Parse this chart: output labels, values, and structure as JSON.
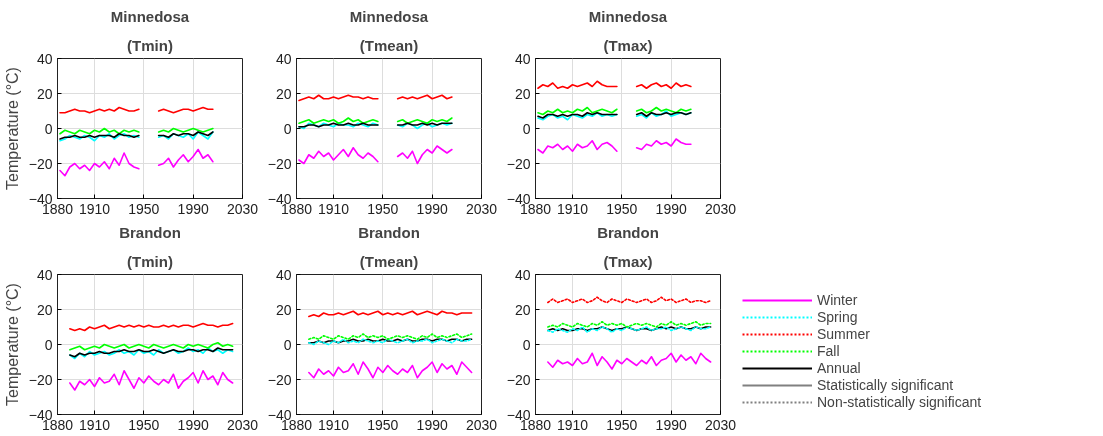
{
  "chart_data": [
    {
      "type": "line",
      "title": "Minnedosa",
      "subtitle": "(Tmin)",
      "ylabel": "Temperature (°C)",
      "xlim": [
        1880,
        2030
      ],
      "xticks": [
        1880,
        1910,
        1950,
        1990,
        2030
      ],
      "ylim": [
        -40,
        40
      ],
      "yticks": [
        -40,
        -20,
        0,
        20,
        40
      ],
      "grid": true,
      "x": [
        1882,
        1886,
        1890,
        1894,
        1898,
        1902,
        1906,
        1910,
        1914,
        1918,
        1922,
        1926,
        1930,
        1934,
        1938,
        1942,
        1946,
        1954,
        1962,
        1966,
        1970,
        1974,
        1978,
        1982,
        1986,
        1990,
        1994,
        1998,
        2002,
        2006
      ],
      "series": [
        {
          "color": "#ff00ff",
          "line_style": "solid",
          "values": [
            -24,
            -27,
            -22,
            -20,
            -23,
            -21,
            -24,
            -20,
            -22,
            -19,
            -23,
            -17,
            -21,
            -14,
            -20,
            -22,
            -23,
            null,
            -21,
            -20,
            -17,
            -22,
            -18,
            -15,
            -19,
            -16,
            -12,
            -17,
            -15,
            -19
          ]
        },
        {
          "color": "#00ffff",
          "line_style": "solid",
          "values": [
            -7,
            -6,
            -4,
            -5,
            -6,
            -4,
            -5,
            -7,
            -4,
            -5,
            -3,
            -6,
            -4,
            -3,
            -5,
            -4,
            -5,
            null,
            -5,
            -4,
            -6,
            -3,
            -4,
            -5,
            -3,
            -6,
            -2,
            -4,
            -6,
            -2
          ]
        },
        {
          "color": "#ff0000",
          "line_style": "solid",
          "values": [
            9,
            9,
            10,
            11,
            10,
            10,
            9,
            10,
            11,
            10,
            11,
            10,
            12,
            11,
            10,
            10,
            11,
            null,
            10,
            11,
            10,
            9,
            10,
            11,
            11,
            10,
            11,
            12,
            11,
            11
          ]
        },
        {
          "color": "#00ff00",
          "line_style": "solid",
          "values": [
            -3,
            -1,
            -2,
            -3,
            -1,
            -2,
            -3,
            -1,
            -2,
            0,
            -2,
            -1,
            -3,
            -1,
            -2,
            -1,
            -2,
            null,
            -2,
            -1,
            -2,
            0,
            -1,
            -2,
            -1,
            0,
            -1,
            -2,
            -1,
            0
          ]
        },
        {
          "color": "#000000",
          "line_style": "solid",
          "values": [
            -6,
            -5,
            -5,
            -4,
            -5,
            -5,
            -4,
            -5,
            -4,
            -4,
            -4,
            -5,
            -3,
            -4,
            -4,
            -5,
            -4,
            null,
            -4,
            -4,
            -5,
            -3,
            -4,
            -3,
            -3,
            -4,
            -2,
            -3,
            -4,
            -2
          ]
        }
      ]
    },
    {
      "type": "line",
      "title": "Minnedosa",
      "subtitle": "(Tmean)",
      "xlim": [
        1880,
        2030
      ],
      "xticks": [
        1880,
        1910,
        1950,
        1990,
        2030
      ],
      "ylim": [
        -40,
        40
      ],
      "yticks": [
        -40,
        -20,
        0,
        20,
        40
      ],
      "grid": true,
      "x": [
        1882,
        1886,
        1890,
        1894,
        1898,
        1902,
        1906,
        1910,
        1914,
        1918,
        1922,
        1926,
        1930,
        1934,
        1938,
        1942,
        1946,
        1954,
        1962,
        1966,
        1970,
        1974,
        1978,
        1982,
        1986,
        1990,
        1994,
        1998,
        2002,
        2006
      ],
      "series": [
        {
          "color": "#ff00ff",
          "line_style": "solid",
          "values": [
            -18,
            -20,
            -15,
            -17,
            -13,
            -16,
            -14,
            -18,
            -15,
            -12,
            -16,
            -11,
            -15,
            -17,
            -14,
            -16,
            -19,
            null,
            -16,
            -14,
            -17,
            -13,
            -20,
            -15,
            -12,
            -14,
            -10,
            -12,
            -14,
            -12
          ]
        },
        {
          "color": "#00ffff",
          "line_style": "solid",
          "values": [
            1,
            0,
            3,
            2,
            1,
            3,
            2,
            1,
            3,
            2,
            2,
            1,
            3,
            2,
            1,
            3,
            2,
            null,
            2,
            1,
            3,
            2,
            0,
            2,
            3,
            1,
            2,
            3,
            2,
            3
          ]
        },
        {
          "color": "#ff0000",
          "line_style": "solid",
          "values": [
            16,
            17,
            18,
            17,
            19,
            17,
            17,
            18,
            17,
            18,
            19,
            18,
            18,
            17,
            18,
            17,
            17,
            null,
            17,
            18,
            17,
            18,
            17,
            18,
            19,
            17,
            18,
            19,
            17,
            18
          ]
        },
        {
          "color": "#00ff00",
          "line_style": "solid",
          "values": [
            3,
            4,
            5,
            3,
            4,
            5,
            4,
            5,
            3,
            4,
            6,
            4,
            5,
            3,
            4,
            5,
            4,
            null,
            4,
            5,
            3,
            4,
            5,
            4,
            3,
            5,
            4,
            5,
            4,
            6
          ]
        },
        {
          "color": "#000000",
          "line_style": "solid",
          "values": [
            1,
            1,
            2,
            2,
            1,
            2,
            2,
            3,
            2,
            2,
            3,
            2,
            2,
            3,
            2,
            2,
            2,
            null,
            2,
            2,
            3,
            2,
            2,
            3,
            2,
            3,
            2,
            3,
            3,
            3
          ]
        }
      ]
    },
    {
      "type": "line",
      "title": "Minnedosa",
      "subtitle": "(Tmax)",
      "xlim": [
        1880,
        2030
      ],
      "xticks": [
        1880,
        1910,
        1950,
        1990,
        2030
      ],
      "ylim": [
        -40,
        40
      ],
      "yticks": [
        -40,
        -20,
        0,
        20,
        40
      ],
      "grid": true,
      "x": [
        1882,
        1886,
        1890,
        1894,
        1898,
        1902,
        1906,
        1910,
        1914,
        1918,
        1922,
        1926,
        1930,
        1934,
        1938,
        1942,
        1946,
        1954,
        1962,
        1966,
        1970,
        1974,
        1978,
        1982,
        1986,
        1990,
        1994,
        1998,
        2002,
        2006
      ],
      "series": [
        {
          "color": "#ff00ff",
          "line_style": "solid",
          "values": [
            -12,
            -14,
            -10,
            -11,
            -9,
            -12,
            -10,
            -13,
            -9,
            -11,
            -10,
            -7,
            -12,
            -9,
            -8,
            -10,
            -13,
            null,
            -11,
            -12,
            -9,
            -10,
            -7,
            -9,
            -8,
            -10,
            -6,
            -8,
            -9,
            -9
          ]
        },
        {
          "color": "#00ffff",
          "line_style": "solid",
          "values": [
            6,
            5,
            7,
            8,
            6,
            7,
            5,
            8,
            7,
            6,
            8,
            7,
            9,
            7,
            8,
            7,
            8,
            null,
            7,
            8,
            6,
            9,
            7,
            8,
            10,
            7,
            8,
            9,
            8,
            9
          ]
        },
        {
          "color": "#ff0000",
          "line_style": "solid",
          "values": [
            23,
            25,
            24,
            26,
            23,
            24,
            23,
            25,
            24,
            25,
            26,
            24,
            27,
            25,
            24,
            24,
            24,
            null,
            24,
            25,
            23,
            25,
            26,
            24,
            25,
            23,
            26,
            24,
            25,
            24
          ]
        },
        {
          "color": "#00ff00",
          "line_style": "solid",
          "values": [
            9,
            8,
            10,
            9,
            11,
            9,
            10,
            9,
            11,
            10,
            12,
            9,
            10,
            11,
            10,
            9,
            11,
            null,
            10,
            11,
            9,
            10,
            12,
            10,
            11,
            10,
            9,
            11,
            10,
            11
          ]
        },
        {
          "color": "#000000",
          "line_style": "solid",
          "values": [
            7,
            6,
            8,
            8,
            7,
            8,
            7,
            8,
            8,
            7,
            9,
            8,
            9,
            8,
            8,
            8,
            8,
            null,
            8,
            9,
            7,
            9,
            8,
            8,
            9,
            8,
            9,
            9,
            8,
            9
          ]
        }
      ]
    },
    {
      "type": "line",
      "title": "Brandon",
      "subtitle": "(Tmin)",
      "ylabel": "Temperature (°C)",
      "xlim": [
        1880,
        2030
      ],
      "xticks": [
        1880,
        1910,
        1950,
        1990,
        2030
      ],
      "ylim": [
        -40,
        40
      ],
      "yticks": [
        -40,
        -20,
        0,
        20,
        40
      ],
      "grid": true,
      "x": [
        1890,
        1894,
        1898,
        1902,
        1906,
        1910,
        1914,
        1918,
        1922,
        1926,
        1930,
        1934,
        1938,
        1942,
        1946,
        1950,
        1954,
        1958,
        1962,
        1966,
        1970,
        1974,
        1978,
        1982,
        1986,
        1990,
        1994,
        1998,
        2002,
        2006,
        2010,
        2014,
        2018,
        2022
      ],
      "series": [
        {
          "color": "#ff00ff",
          "line_style": "solid",
          "values": [
            -22,
            -26,
            -21,
            -23,
            -20,
            -24,
            -19,
            -22,
            -21,
            -17,
            -23,
            -15,
            -20,
            -25,
            -19,
            -22,
            -18,
            -21,
            -23,
            -20,
            -22,
            -17,
            -25,
            -21,
            -19,
            -16,
            -22,
            -15,
            -20,
            -18,
            -23,
            -16,
            -20,
            -22
          ]
        },
        {
          "color": "#00ffff",
          "line_style": "solid",
          "values": [
            -6,
            -8,
            -5,
            -7,
            -4,
            -6,
            -5,
            -4,
            -6,
            -5,
            -3,
            -5,
            -4,
            -6,
            -3,
            -5,
            -4,
            -6,
            -3,
            -5,
            -4,
            -3,
            -5,
            -4,
            -2,
            -4,
            -3,
            -5,
            -2,
            -4,
            -3,
            -5,
            -3,
            -4
          ]
        },
        {
          "color": "#ff0000",
          "line_style": "solid",
          "values": [
            9,
            8,
            9,
            8,
            10,
            9,
            10,
            11,
            9,
            10,
            11,
            10,
            11,
            10,
            11,
            10,
            11,
            10,
            10,
            11,
            10,
            11,
            10,
            11,
            11,
            10,
            11,
            12,
            11,
            11,
            10,
            11,
            11,
            12
          ]
        },
        {
          "color": "#00ff00",
          "line_style": "solid",
          "values": [
            -3,
            -2,
            -1,
            -3,
            -2,
            -1,
            -2,
            0,
            -1,
            -2,
            -1,
            0,
            -2,
            -1,
            0,
            -1,
            -2,
            0,
            -1,
            -2,
            -1,
            0,
            -1,
            -2,
            0,
            -1,
            0,
            -1,
            -2,
            0,
            1,
            -1,
            0,
            -1
          ]
        },
        {
          "color": "#000000",
          "line_style": "solid",
          "values": [
            -6,
            -7,
            -5,
            -6,
            -5,
            -5,
            -4,
            -5,
            -5,
            -4,
            -4,
            -3,
            -4,
            -4,
            -3,
            -4,
            -4,
            -3,
            -4,
            -5,
            -4,
            -3,
            -4,
            -4,
            -3,
            -3,
            -4,
            -3,
            -3,
            -4,
            -2,
            -3,
            -3,
            -3
          ]
        }
      ]
    },
    {
      "type": "line",
      "title": "Brandon",
      "subtitle": "(Tmean)",
      "xlim": [
        1880,
        2030
      ],
      "xticks": [
        1880,
        1910,
        1950,
        1990,
        2030
      ],
      "ylim": [
        -40,
        40
      ],
      "yticks": [
        -40,
        -20,
        0,
        20,
        40
      ],
      "grid": true,
      "x": [
        1890,
        1894,
        1898,
        1902,
        1906,
        1910,
        1914,
        1918,
        1922,
        1926,
        1930,
        1934,
        1938,
        1942,
        1946,
        1950,
        1954,
        1958,
        1962,
        1966,
        1970,
        1974,
        1978,
        1982,
        1986,
        1990,
        1994,
        1998,
        2002,
        2006,
        2010,
        2014,
        2018,
        2022
      ],
      "series": [
        {
          "color": "#ff00ff",
          "line_style": "solid",
          "values": [
            -16,
            -19,
            -14,
            -17,
            -15,
            -18,
            -13,
            -16,
            -15,
            -11,
            -17,
            -10,
            -14,
            -19,
            -13,
            -16,
            -12,
            -15,
            -17,
            -14,
            -16,
            -12,
            -19,
            -15,
            -13,
            -10,
            -16,
            -11,
            -14,
            -12,
            -17,
            -10,
            -13,
            -16
          ]
        },
        {
          "color": "#00ffff",
          "line_style": "dotted",
          "values": [
            1,
            0,
            2,
            1,
            0,
            2,
            1,
            3,
            1,
            2,
            1,
            3,
            2,
            1,
            2,
            1,
            3,
            2,
            1,
            2,
            3,
            1,
            2,
            2,
            3,
            1,
            2,
            3,
            2,
            1,
            3,
            2,
            2,
            3
          ]
        },
        {
          "color": "#ff0000",
          "line_style": "solid",
          "values": [
            16,
            17,
            16,
            18,
            17,
            17,
            18,
            17,
            18,
            19,
            17,
            18,
            17,
            18,
            19,
            17,
            18,
            17,
            18,
            17,
            18,
            19,
            17,
            18,
            19,
            18,
            17,
            19,
            18,
            18,
            17,
            18,
            18,
            18
          ]
        },
        {
          "color": "#00ff00",
          "line_style": "dotted",
          "values": [
            3,
            4,
            3,
            5,
            4,
            3,
            5,
            4,
            3,
            5,
            4,
            6,
            4,
            5,
            4,
            5,
            3,
            4,
            5,
            4,
            5,
            4,
            3,
            5,
            4,
            6,
            4,
            5,
            4,
            5,
            6,
            4,
            5,
            6
          ]
        },
        {
          "color": "#000000",
          "line_style": "solid",
          "values": [
            1,
            1,
            2,
            1,
            2,
            2,
            1,
            2,
            2,
            3,
            2,
            2,
            3,
            2,
            2,
            3,
            2,
            2,
            3,
            2,
            3,
            2,
            2,
            3,
            3,
            2,
            3,
            3,
            2,
            3,
            3,
            2,
            3,
            3
          ]
        }
      ]
    },
    {
      "type": "line",
      "title": "Brandon",
      "subtitle": "(Tmax)",
      "xlim": [
        1880,
        2030
      ],
      "xticks": [
        1880,
        1910,
        1950,
        1990,
        2030
      ],
      "ylim": [
        -40,
        40
      ],
      "yticks": [
        -40,
        -20,
        0,
        20,
        40
      ],
      "grid": true,
      "legend": "right",
      "x": [
        1890,
        1894,
        1898,
        1902,
        1906,
        1910,
        1914,
        1918,
        1922,
        1926,
        1930,
        1934,
        1938,
        1942,
        1946,
        1950,
        1954,
        1958,
        1962,
        1966,
        1970,
        1974,
        1978,
        1982,
        1986,
        1990,
        1994,
        1998,
        2002,
        2006,
        2010,
        2014,
        2018,
        2022
      ],
      "series": [
        {
          "name": "Winter",
          "color": "#ff00ff",
          "line_style": "solid",
          "values": [
            -10,
            -13,
            -9,
            -11,
            -10,
            -12,
            -8,
            -11,
            -10,
            -5,
            -12,
            -7,
            -10,
            -14,
            -9,
            -11,
            -8,
            -10,
            -12,
            -9,
            -11,
            -7,
            -12,
            -9,
            -8,
            -5,
            -10,
            -6,
            -9,
            -7,
            -11,
            -5,
            -8,
            -10
          ]
        },
        {
          "name": "Spring",
          "color": "#00ffff",
          "line_style": "dotted",
          "values": [
            8,
            7,
            9,
            8,
            7,
            9,
            8,
            10,
            7,
            9,
            8,
            10,
            9,
            7,
            9,
            8,
            10,
            9,
            8,
            9,
            10,
            8,
            9,
            9,
            10,
            8,
            9,
            10,
            9,
            8,
            10,
            9,
            9,
            10
          ]
        },
        {
          "name": "Summer",
          "color": "#ff0000",
          "line_style": "dotted",
          "values": [
            24,
            26,
            24,
            25,
            26,
            24,
            25,
            26,
            24,
            25,
            27,
            25,
            24,
            26,
            25,
            24,
            26,
            25,
            24,
            25,
            26,
            24,
            25,
            27,
            25,
            26,
            24,
            25,
            26,
            24,
            25,
            25,
            24,
            25
          ]
        },
        {
          "name": "Fall",
          "color": "#00ff00",
          "line_style": "dotted",
          "values": [
            10,
            11,
            10,
            12,
            11,
            10,
            12,
            11,
            10,
            12,
            11,
            13,
            11,
            12,
            11,
            12,
            10,
            11,
            12,
            11,
            12,
            11,
            10,
            12,
            11,
            13,
            11,
            12,
            11,
            12,
            13,
            11,
            12,
            12
          ]
        },
        {
          "name": "Annual",
          "color": "#000000",
          "line_style": "solid",
          "values": [
            8,
            9,
            8,
            9,
            8,
            8,
            9,
            9,
            8,
            9,
            9,
            10,
            9,
            8,
            9,
            9,
            10,
            9,
            8,
            9,
            9,
            8,
            9,
            10,
            9,
            10,
            9,
            10,
            9,
            9,
            10,
            9,
            10,
            10
          ]
        },
        {
          "name": "Statistically significant",
          "color": "#808080",
          "line_style": "solid",
          "values": [
            null,
            null,
            null,
            null,
            null,
            null,
            null,
            null,
            null,
            null,
            null,
            null,
            null,
            null,
            null,
            null,
            null,
            null,
            null,
            null,
            null,
            null,
            null,
            null,
            null,
            null,
            null,
            null,
            null,
            null,
            null,
            null,
            null,
            null
          ]
        },
        {
          "name": "Non-statistically significant",
          "color": "#808080",
          "line_style": "dotted",
          "values": [
            null,
            null,
            null,
            null,
            null,
            null,
            null,
            null,
            null,
            null,
            null,
            null,
            null,
            null,
            null,
            null,
            null,
            null,
            null,
            null,
            null,
            null,
            null,
            null,
            null,
            null,
            null,
            null,
            null,
            null,
            null,
            null,
            null,
            null
          ]
        }
      ]
    }
  ]
}
